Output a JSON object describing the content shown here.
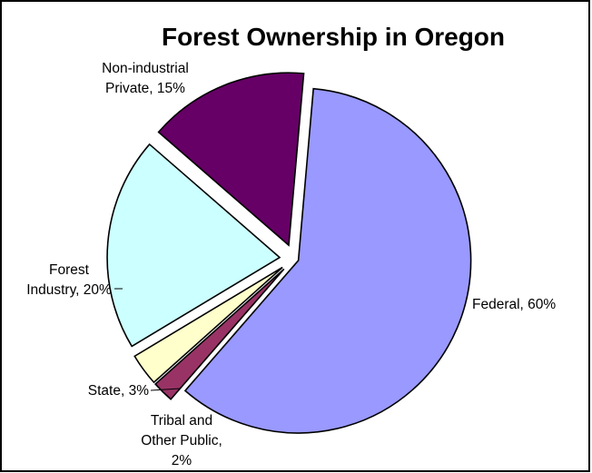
{
  "chart_data": {
    "type": "pie",
    "title": "Forest Ownership in Oregon",
    "slices": [
      {
        "label": "Federal, 60%",
        "lines": [
          "Federal, 60%"
        ],
        "value": 60,
        "color": "#9999ff"
      },
      {
        "label": "Tribal and Other Public, 2%",
        "lines": [
          "Tribal and",
          "Other Public,",
          "2%"
        ],
        "value": 2,
        "color": "#993366"
      },
      {
        "label": "State, 3%",
        "lines": [
          "State, 3%"
        ],
        "value": 3,
        "color": "#ffffcc"
      },
      {
        "label": "Forest Industry, 20%",
        "lines": [
          "Forest",
          "Industry, 20%"
        ],
        "value": 20,
        "color": "#ccffff"
      },
      {
        "label": "Non-industrial Private, 15%",
        "lines": [
          "Non-industrial",
          "Private, 15%"
        ],
        "value": 15,
        "color": "#660066"
      }
    ],
    "legend": "none",
    "exploded": true
  }
}
